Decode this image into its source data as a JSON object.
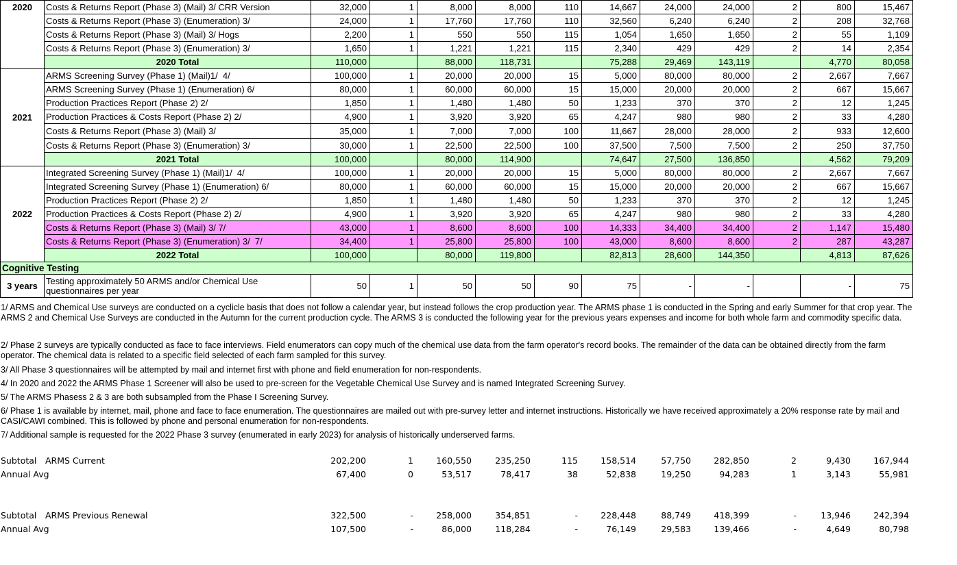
{
  "total_color": "#ccffcc",
  "sections": [
    {
      "year": "2020",
      "rows": [
        {
          "label": "Costs & Returns Report (Phase 3) (Mail) 3/ CRR Version",
          "cells": [
            "32,000",
            "1",
            "8,000",
            "8,000",
            "110",
            "14,667",
            "24,000",
            "24,000",
            "2",
            "800",
            "15,467"
          ]
        },
        {
          "label": "Costs & Returns Report (Phase 3) (Enumeration) 3/",
          "cells": [
            "24,000",
            "1",
            "17,760",
            "17,760",
            "110",
            "32,560",
            "6,240",
            "6,240",
            "2",
            "208",
            "32,768"
          ]
        },
        {
          "label": "Costs & Returns Report (Phase 3) (Mail) 3/ Hogs",
          "cells": [
            "2,200",
            "1",
            "550",
            "550",
            "115",
            "1,054",
            "1,650",
            "1,650",
            "2",
            "55",
            "1,109"
          ]
        },
        {
          "label": "Costs & Returns Report (Phase 3) (Enumeration) 3/",
          "cells": [
            "1,650",
            "1",
            "1,221",
            "1,221",
            "115",
            "2,340",
            "429",
            "429",
            "2",
            "14",
            "2,354"
          ]
        }
      ],
      "total": {
        "label": "2020 Total",
        "cells": [
          "110,000",
          null,
          "88,000",
          "118,731",
          null,
          "75,288",
          "29,469",
          "143,119",
          null,
          "4,770",
          "80,058"
        ]
      }
    },
    {
      "year": "2021",
      "rows": [
        {
          "label": "ARMS Screening Survey (Phase 1) (Mail)1/  4/",
          "cells": [
            "100,000",
            "1",
            "20,000",
            "20,000",
            "15",
            "5,000",
            "80,000",
            "80,000",
            "2",
            "2,667",
            "7,667"
          ]
        },
        {
          "label": "ARMS Screening Survey (Phase 1) (Enumeration) 6/",
          "cells": [
            "80,000",
            "1",
            "60,000",
            "60,000",
            "15",
            "15,000",
            "20,000",
            "20,000",
            "2",
            "667",
            "15,667"
          ]
        },
        {
          "label": "Production Practices Report (Phase 2) 2/",
          "cells": [
            "1,850",
            "1",
            "1,480",
            "1,480",
            "50",
            "1,233",
            "370",
            "370",
            "2",
            "12",
            "1,245"
          ]
        },
        {
          "label": "Production Practices & Costs Report (Phase 2) 2/",
          "cells": [
            "4,900",
            "1",
            "3,920",
            "3,920",
            "65",
            "4,247",
            "980",
            "980",
            "2",
            "33",
            "4,280"
          ]
        },
        {
          "label": "Costs & Returns Report (Phase 3) (Mail) 3/",
          "cells": [
            "35,000",
            "1",
            "7,000",
            "7,000",
            "100",
            "11,667",
            "28,000",
            "28,000",
            "2",
            "933",
            "12,600"
          ]
        },
        {
          "label": "Costs & Returns Report (Phase 3) (Enumeration) 3/",
          "cells": [
            "30,000",
            "1",
            "22,500",
            "22,500",
            "100",
            "37,500",
            "7,500",
            "7,500",
            "2",
            "250",
            "37,750"
          ]
        }
      ],
      "total": {
        "label": "2021 Total",
        "cells": [
          "100,000",
          null,
          "80,000",
          "114,900",
          null,
          "74,647",
          "27,500",
          "136,850",
          null,
          "4,562",
          "79,209"
        ]
      }
    },
    {
      "year": "2022",
      "rows": [
        {
          "label": "Integrated Screening Survey (Phase 1) (Mail)1/  4/",
          "cells": [
            "100,000",
            "1",
            "20,000",
            "20,000",
            "15",
            "5,000",
            "80,000",
            "80,000",
            "2",
            "2,667",
            "7,667"
          ]
        },
        {
          "label": "Integrated Screening Survey (Phase 1) (Enumeration) 6/",
          "cells": [
            "80,000",
            "1",
            "60,000",
            "60,000",
            "15",
            "15,000",
            "20,000",
            "20,000",
            "2",
            "667",
            "15,667"
          ]
        },
        {
          "label": "Production Practices Report (Phase 2) 2/",
          "cells": [
            "1,850",
            "1",
            "1,480",
            "1,480",
            "50",
            "1,233",
            "370",
            "370",
            "2",
            "12",
            "1,245"
          ]
        },
        {
          "label": "Production Practices & Costs Report (Phase 2) 2/",
          "cells": [
            "4,900",
            "1",
            "3,920",
            "3,920",
            "65",
            "4,247",
            "980",
            "980",
            "2",
            "33",
            "4,280"
          ]
        },
        {
          "label": "Costs & Returns Report (Phase 3) (Mail) 3/ 7/",
          "highlight": "#ff99ff",
          "cells": [
            "43,000",
            "1",
            "8,600",
            "8,600",
            "100",
            "14,333",
            "34,400",
            "34,400",
            "2",
            "1,147",
            "15,480"
          ]
        },
        {
          "label": "Costs & Returns Report (Phase 3) (Enumeration) 3/  7/",
          "highlight": "#ff99ff",
          "cells": [
            "34,400",
            "1",
            "25,800",
            "25,800",
            "100",
            "43,000",
            "8,600",
            "8,600",
            "2",
            "287",
            "43,287"
          ]
        }
      ],
      "total": {
        "label": "2022 Total",
        "cells": [
          "100,000",
          null,
          "80,000",
          "119,800",
          null,
          "82,813",
          "28,600",
          "144,350",
          null,
          "4,813",
          "87,626"
        ]
      }
    }
  ],
  "cognitive": {
    "title": "Cognitive Testing",
    "period": "3 years",
    "label": "Testing approximately 50 ARMS and/or Chemical Use questionnaires per year",
    "cells": [
      "50",
      "1",
      "50",
      "50",
      "90",
      "75",
      "-",
      "-",
      null,
      "-",
      "75"
    ]
  },
  "notes": [
    "1/ ARMS and Chemical Use surveys are conducted on a cyclicle basis that does not follow a calendar year, but instead follows the crop production year.  The ARMS phase 1 is conducted in the Spring and early Summer for that crop year.  The ARMS 2 and Chemical Use Surveys are conducted in the Autumn for the current production cycle.  The ARMS 3 is conducted the following year for the previous years expenses and income for both whole farm and commodity specific data.",
    "2/ Phase 2 surveys are typically conducted as face to face interviews. Field enumerators can copy much of the chemical use data from the farm operator's record books. The remainder of the data can be obtained directly from the farm operator.  The chemical data is related to a specific field selected of each farm sampled for this survey.",
    "3/ All Phase 3 questionnaires will be attempted by mail and internet first with phone and field enumeration for non-respondents.",
    "4/ In 2020 and 2022 the ARMS Phase 1 Screener will also be used to pre-screen for the Vegetable Chemical Use Survey and is named Integrated Screening Survey.",
    "5/ The ARMS Phasess 2 & 3 are both subsampled from the Phase I Screening Survey.",
    "6/ Phase 1 is available by internet, mail, phone and face to face enumeration. The questionnaires are mailed out with pre-survey letter and internet instructions.  Historically we have received approximately a 20% response rate by mail and CASI/CAWI combined.  This is followed by phone and personal enumeration for non-respondents.",
    "7/ Additional sample is requested for the 2022 Phase 3 survey (enumerated in early 2023) for analysis of historically underserved farms."
  ],
  "summary": [
    {
      "label": "Subtotal",
      "name": "ARMS Current",
      "cells": [
        "202,200",
        "1",
        "160,550",
        "235,250",
        "115",
        "158,514",
        "57,750",
        "282,850",
        "2",
        "9,430",
        "167,944"
      ]
    },
    {
      "label": "Annual Avg",
      "cells": [
        "67,400",
        "0",
        "53,517",
        "78,417",
        "38",
        "52,838",
        "19,250",
        "94,283",
        "1",
        "3,143",
        "55,981"
      ]
    },
    {
      "label": "Subtotal",
      "name": "ARMS Previous Renewal",
      "cells": [
        "322,500",
        "-",
        "258,000",
        "354,851",
        "-",
        "228,448",
        "88,749",
        "418,399",
        "-",
        "13,946",
        "242,394"
      ]
    },
    {
      "label": "Annual Avg",
      "cells": [
        "107,500",
        "-",
        "86,000",
        "118,284",
        "-",
        "76,149",
        "29,583",
        "139,466",
        "-",
        "4,649",
        "80,798"
      ]
    }
  ]
}
